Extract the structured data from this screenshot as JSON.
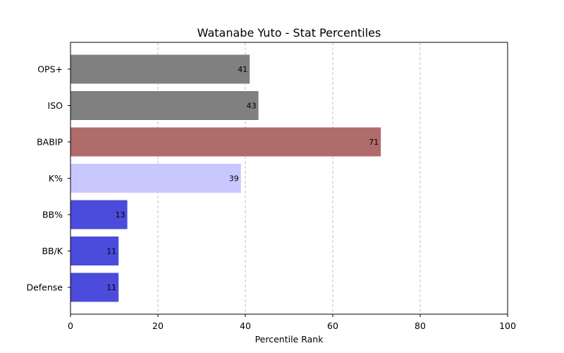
{
  "chart_data": {
    "type": "bar",
    "orientation": "horizontal",
    "title": "Watanabe Yuto - Stat Percentiles",
    "xlabel": "Percentile Rank",
    "ylabel": "",
    "xlim": [
      0,
      100
    ],
    "xticks": [
      0,
      20,
      40,
      60,
      80,
      100
    ],
    "grid": "x-dashed",
    "categories": [
      "OPS+",
      "ISO",
      "BABIP",
      "K%",
      "BB%",
      "BB/K",
      "Defense"
    ],
    "values": [
      41,
      43,
      71,
      39,
      13,
      11,
      11
    ],
    "colors": [
      "#808080",
      "#808080",
      "#b06b6b",
      "#c8c8ff",
      "#4b4bdc",
      "#4b4bdc",
      "#4b4bdc"
    ]
  }
}
